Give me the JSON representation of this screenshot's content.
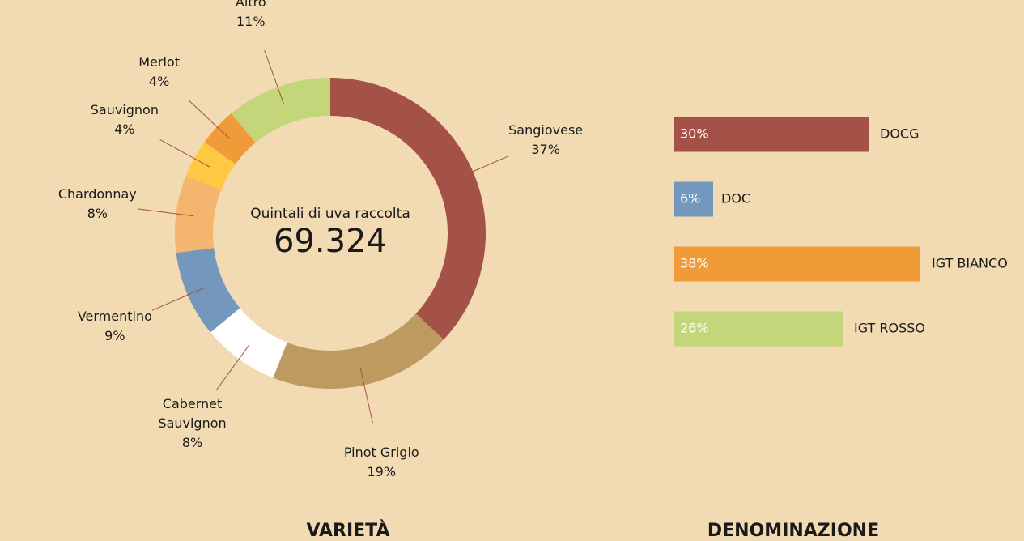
{
  "chart_data": [
    {
      "type": "donut",
      "title": "VARIETÀ",
      "center_text": "Quintali di uva raccolta",
      "total": {
        "value": 69324,
        "label": "69.324"
      },
      "categories": [
        "Sangiovese",
        "Pinot Grigio",
        "Cabernet Sauvignon",
        "Vermentino",
        "Chardonnay",
        "Sauvignon",
        "Merlot",
        "Altro"
      ],
      "values": [
        37,
        19,
        8,
        9,
        8,
        4,
        4,
        11
      ],
      "value_labels": [
        "37%",
        "19%",
        "8%",
        "9%",
        "8%",
        "4%",
        "4%",
        "11%"
      ],
      "colors": [
        "#a45248",
        "#bd9a5f",
        "#ffffff",
        "#7397bd",
        "#f4b56e",
        "#fec842",
        "#f09a38",
        "#c4d67a"
      ]
    },
    {
      "type": "hbar",
      "title": "DENOMINAZIONE",
      "categories": [
        "DOCG",
        "DOC",
        "IGT BIANCO",
        "IGT ROSSO"
      ],
      "values": [
        30,
        6,
        38,
        26
      ],
      "value_labels": [
        "30%",
        "6%",
        "38%",
        "26%"
      ],
      "colors": [
        "#a45248",
        "#7397bd",
        "#f09a38",
        "#c4d67a"
      ]
    }
  ]
}
